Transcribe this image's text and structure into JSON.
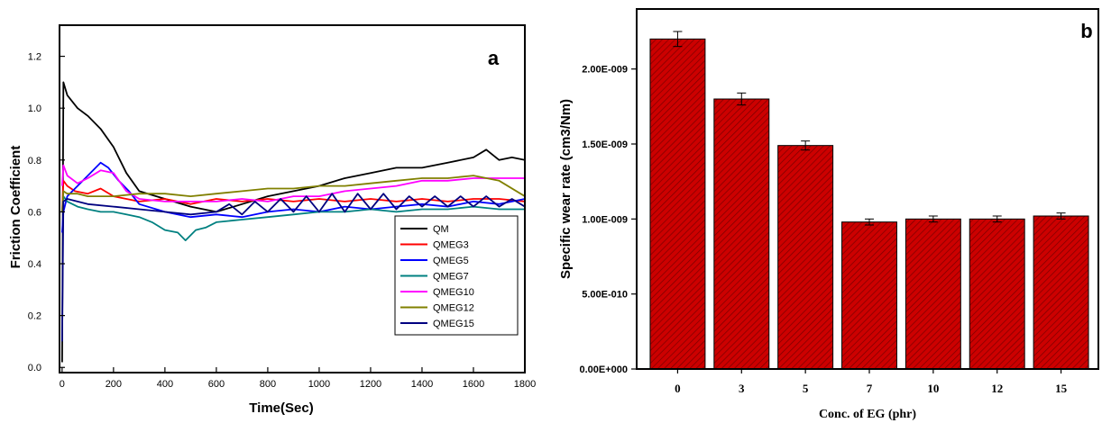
{
  "chart_data": [
    {
      "panel_label": "a",
      "type": "line",
      "xlabel": "Time(Sec)",
      "ylabel": "Friction Coefficient",
      "xlim": [
        -10,
        1800
      ],
      "ylim": [
        -0.02,
        1.32
      ],
      "xticks": [
        "0",
        "200",
        "400",
        "600",
        "800",
        "1000",
        "1200",
        "1400",
        "1600",
        "1800"
      ],
      "yticks": [
        "0.0",
        "0.2",
        "0.4",
        "0.6",
        "0.8",
        "1.0",
        "1.2"
      ],
      "legend_position": "bottom-right",
      "grid": false,
      "series": [
        {
          "name": "QM",
          "color": "#000000",
          "x": [
            0,
            5,
            20,
            60,
            100,
            150,
            200,
            250,
            300,
            400,
            500,
            600,
            700,
            800,
            900,
            1000,
            1100,
            1200,
            1300,
            1400,
            1500,
            1600,
            1650,
            1700,
            1750,
            1800
          ],
          "y": [
            0.02,
            1.1,
            1.05,
            1.0,
            0.97,
            0.92,
            0.85,
            0.75,
            0.68,
            0.65,
            0.62,
            0.6,
            0.63,
            0.66,
            0.68,
            0.7,
            0.73,
            0.75,
            0.77,
            0.77,
            0.79,
            0.81,
            0.84,
            0.8,
            0.81,
            0.8
          ]
        },
        {
          "name": "QMEG3",
          "color": "#ff0000",
          "x": [
            0,
            5,
            20,
            50,
            100,
            150,
            200,
            250,
            300,
            400,
            500,
            600,
            700,
            800,
            900,
            1000,
            1100,
            1200,
            1300,
            1400,
            1500,
            1600,
            1700,
            1800
          ],
          "y": [
            0.6,
            0.72,
            0.7,
            0.68,
            0.67,
            0.69,
            0.66,
            0.65,
            0.64,
            0.65,
            0.63,
            0.65,
            0.64,
            0.65,
            0.64,
            0.65,
            0.64,
            0.65,
            0.64,
            0.65,
            0.64,
            0.65,
            0.65,
            0.64
          ]
        },
        {
          "name": "QMEG5",
          "color": "#0000ff",
          "x": [
            0,
            5,
            20,
            60,
            100,
            150,
            180,
            220,
            260,
            300,
            400,
            500,
            600,
            700,
            800,
            900,
            1000,
            1100,
            1200,
            1300,
            1400,
            1500,
            1600,
            1700,
            1800
          ],
          "y": [
            0.52,
            0.6,
            0.66,
            0.7,
            0.74,
            0.79,
            0.77,
            0.72,
            0.68,
            0.63,
            0.6,
            0.58,
            0.59,
            0.58,
            0.6,
            0.61,
            0.6,
            0.62,
            0.61,
            0.62,
            0.63,
            0.62,
            0.64,
            0.63,
            0.65
          ]
        },
        {
          "name": "QMEG7",
          "color": "#008080",
          "x": [
            0,
            5,
            20,
            60,
            100,
            150,
            200,
            250,
            300,
            350,
            400,
            450,
            480,
            520,
            560,
            600,
            700,
            800,
            900,
            1000,
            1100,
            1200,
            1300,
            1400,
            1500,
            1600,
            1700,
            1800
          ],
          "y": [
            0.6,
            0.66,
            0.64,
            0.62,
            0.61,
            0.6,
            0.6,
            0.59,
            0.58,
            0.56,
            0.53,
            0.52,
            0.49,
            0.53,
            0.54,
            0.56,
            0.57,
            0.58,
            0.59,
            0.6,
            0.6,
            0.61,
            0.6,
            0.61,
            0.61,
            0.62,
            0.61,
            0.61
          ]
        },
        {
          "name": "QMEG10",
          "color": "#ff00ff",
          "x": [
            0,
            5,
            20,
            60,
            100,
            150,
            200,
            250,
            300,
            400,
            500,
            600,
            700,
            800,
            900,
            1000,
            1100,
            1200,
            1300,
            1400,
            1500,
            1600,
            1700,
            1800
          ],
          "y": [
            0.7,
            0.78,
            0.74,
            0.71,
            0.73,
            0.76,
            0.75,
            0.68,
            0.65,
            0.64,
            0.64,
            0.64,
            0.65,
            0.64,
            0.66,
            0.66,
            0.68,
            0.69,
            0.7,
            0.72,
            0.72,
            0.73,
            0.73,
            0.73
          ]
        },
        {
          "name": "QMEG12",
          "color": "#808000",
          "x": [
            0,
            5,
            20,
            60,
            100,
            200,
            300,
            400,
            500,
            600,
            700,
            800,
            900,
            1000,
            1100,
            1200,
            1300,
            1400,
            1500,
            1600,
            1700,
            1800
          ],
          "y": [
            0.6,
            0.68,
            0.67,
            0.67,
            0.66,
            0.66,
            0.67,
            0.67,
            0.66,
            0.67,
            0.68,
            0.69,
            0.69,
            0.7,
            0.7,
            0.71,
            0.72,
            0.73,
            0.73,
            0.74,
            0.72,
            0.66
          ]
        },
        {
          "name": "QMEG15",
          "color": "#000080",
          "x": [
            0,
            5,
            20,
            60,
            100,
            200,
            300,
            400,
            500,
            600,
            650,
            700,
            750,
            800,
            850,
            900,
            950,
            1000,
            1050,
            1100,
            1150,
            1200,
            1250,
            1300,
            1350,
            1400,
            1450,
            1500,
            1550,
            1600,
            1650,
            1700,
            1750,
            1800
          ],
          "y": [
            0.1,
            0.64,
            0.65,
            0.64,
            0.63,
            0.62,
            0.61,
            0.6,
            0.59,
            0.6,
            0.63,
            0.59,
            0.64,
            0.6,
            0.65,
            0.6,
            0.66,
            0.6,
            0.67,
            0.6,
            0.67,
            0.61,
            0.67,
            0.61,
            0.66,
            0.62,
            0.66,
            0.62,
            0.66,
            0.62,
            0.66,
            0.62,
            0.65,
            0.62
          ]
        }
      ]
    },
    {
      "panel_label": "b",
      "type": "bar",
      "xlabel": "Conc. of EG (phr)",
      "ylabel": "Specific wear rate (cm3/Nm)",
      "categories": [
        "0",
        "3",
        "5",
        "7",
        "10",
        "12",
        "15"
      ],
      "values": [
        2.2e-09,
        1.8e-09,
        1.49e-09,
        9.8e-10,
        1e-09,
        1e-09,
        1.02e-09
      ],
      "errors": [
        5e-11,
        4e-11,
        3e-11,
        2e-11,
        2e-11,
        2e-11,
        2e-11
      ],
      "ylim": [
        0,
        2.4e-09
      ],
      "yticks": [
        "0.00E+000",
        "5.00E-010",
        "1.00E-009",
        "1.50E-009",
        "2.00E-009"
      ],
      "bar_color": "#cc0000",
      "hatch_color": "#7a0000",
      "grid": false
    }
  ]
}
